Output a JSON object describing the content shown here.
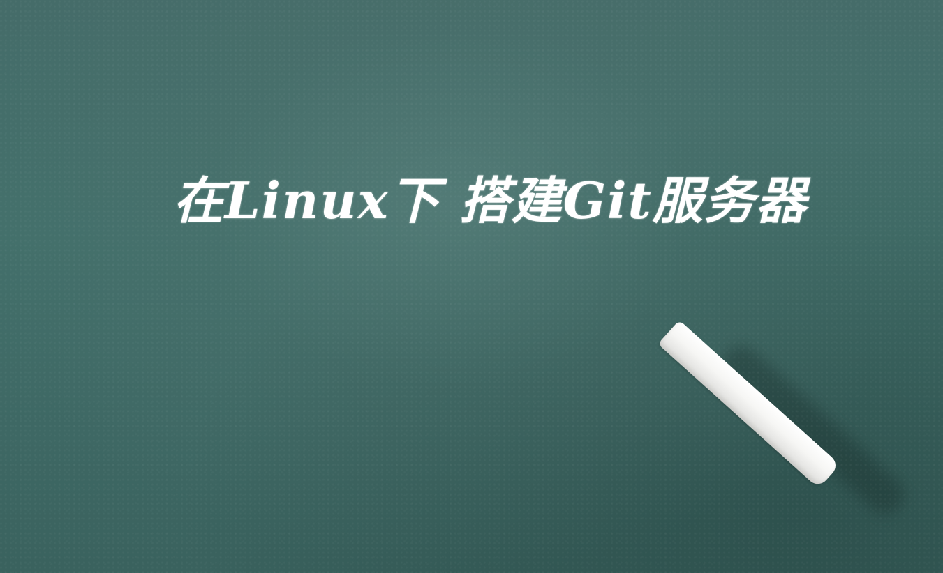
{
  "image": {
    "title": "在Linux下 搭建Git服务器",
    "background_color": "#3f6663",
    "text_color": "#ffffff",
    "objects": [
      "chalkboard",
      "chalk-stick"
    ]
  }
}
